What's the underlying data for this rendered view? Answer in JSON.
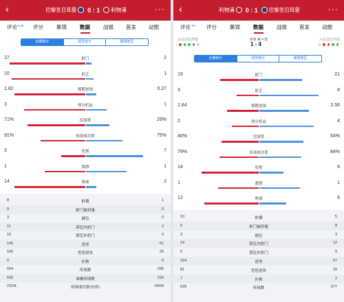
{
  "left": {
    "header": {
      "back_icon": "‹",
      "home_team": "巴黎圣日耳曼",
      "score": "0 : 1",
      "away_team": "利物浦",
      "more_icon": "···"
    },
    "tabs": [
      {
        "label": "评论",
        "sup": "6.2k"
      },
      {
        "label": "评分",
        "sup": ""
      },
      {
        "label": "集锦",
        "sup": ""
      },
      {
        "label": "数据",
        "sup": ""
      },
      {
        "label": "战报",
        "sup": ""
      },
      {
        "label": "首发",
        "sup": ""
      },
      {
        "label": "动图",
        "sup": ""
      }
    ],
    "active_tab": 3,
    "segments": [
      "比赛统计",
      "球员统计",
      "踢球热区"
    ],
    "stats": [
      {
        "name": "射门",
        "left": "27",
        "right": "2",
        "lf": 0.93,
        "rf": 0.07
      },
      {
        "name": "射正",
        "left": "10",
        "right": "1",
        "lf": 0.91,
        "rf": 0.09
      },
      {
        "name": "预期进球",
        "left": "1.82",
        "right": "0.27",
        "lf": 0.87,
        "rf": 0.13
      },
      {
        "name": "得分机会",
        "left": "3",
        "right": "1",
        "lf": 0.75,
        "rf": 0.25
      },
      {
        "name": "控球率",
        "left": "71%",
        "right": "29%",
        "lf": 0.71,
        "rf": 0.29
      },
      {
        "name": "传球成功率",
        "left": "91%",
        "right": "75%",
        "lf": 0.55,
        "rf": 0.45
      },
      {
        "name": "犯规",
        "left": "3",
        "right": "7",
        "lf": 0.3,
        "rf": 0.7
      },
      {
        "name": "黄牌",
        "left": "1",
        "right": "1",
        "lf": 0.5,
        "rf": 0.5
      },
      {
        "name": "角球",
        "left": "14",
        "right": "2",
        "lf": 0.875,
        "rf": 0.125
      }
    ],
    "list": [
      {
        "name": "射偏",
        "left": "8",
        "right": "1"
      },
      {
        "name": "射门被封堵",
        "left": "9",
        "right": "0"
      },
      {
        "name": "越位",
        "left": "3",
        "right": "0"
      },
      {
        "name": "禁区内射门",
        "left": "11",
        "right": "2"
      },
      {
        "name": "禁区外射门",
        "left": "16",
        "right": "0"
      },
      {
        "name": "进攻",
        "left": "145",
        "right": "61"
      },
      {
        "name": "危险进攻",
        "left": "106",
        "right": "25"
      },
      {
        "name": "扑救",
        "left": "0",
        "right": "9"
      },
      {
        "name": "传球数",
        "left": "694",
        "right": "295"
      },
      {
        "name": "准确传球数",
        "left": "630",
        "right": "220"
      },
      {
        "name": "传球成功率(长传)",
        "left": "23/34",
        "right": "24/58"
      }
    ]
  },
  "right": {
    "header": {
      "back_icon": "‹",
      "home_team": "利物浦",
      "score": "0 : 1",
      "away_team": "巴黎圣日耳曼",
      "more_icon": "···"
    },
    "tabs": [
      {
        "label": "评论",
        "sup": "7w"
      },
      {
        "label": "评分",
        "sup": ""
      },
      {
        "label": "集锦",
        "sup": ""
      },
      {
        "label": "数据",
        "sup": ""
      },
      {
        "label": "战报",
        "sup": ""
      },
      {
        "label": "首发",
        "sup": ""
      },
      {
        "label": "动图",
        "sup": ""
      }
    ],
    "active_tab": 3,
    "shootout": {
      "left_fav": "从左往右开始",
      "right_fav": "从右往左开始",
      "label": "点球 第 4 轮",
      "score": "1 - 4",
      "left_colors": [
        "#e23a3a",
        "#2fbf55",
        "#2fbf55",
        "#2fbf55",
        "#cfd3da"
      ],
      "right_colors": [
        "#cfd3da",
        "#e23a3a",
        "#e23a3a",
        "#2fbf55",
        "#2fbf55"
      ]
    },
    "segments": [
      "比赛统计",
      "球员统计",
      "踢球热区"
    ],
    "stats": [
      {
        "name": "射门",
        "left": "19",
        "right": "21",
        "lf": 0.475,
        "rf": 0.525
      },
      {
        "name": "射正",
        "left": "3",
        "right": "8",
        "lf": 0.27,
        "rf": 0.73
      },
      {
        "name": "预期进球",
        "left": "1.64",
        "right": "2.56",
        "lf": 0.39,
        "rf": 0.61
      },
      {
        "name": "得分机会",
        "left": "2",
        "right": "4",
        "lf": 0.33,
        "rf": 0.67
      },
      {
        "name": "控球率",
        "left": "46%",
        "right": "54%",
        "lf": 0.46,
        "rf": 0.54
      },
      {
        "name": "传球成功率",
        "left": "79%",
        "right": "84%",
        "lf": 0.48,
        "rf": 0.52
      },
      {
        "name": "犯规",
        "left": "14",
        "right": "6",
        "lf": 0.7,
        "rf": 0.3
      },
      {
        "name": "黄牌",
        "left": "1",
        "right": "1",
        "lf": 0.5,
        "rf": 0.5
      },
      {
        "name": "角球",
        "left": "12",
        "right": "6",
        "lf": 0.67,
        "rf": 0.33
      }
    ],
    "list": [
      {
        "name": "射偏",
        "left": "10",
        "right": "5"
      },
      {
        "name": "射门被封堵",
        "left": "6",
        "right": "8"
      },
      {
        "name": "越位",
        "left": "3",
        "right": "3"
      },
      {
        "name": "禁区内射门",
        "left": "14",
        "right": "12"
      },
      {
        "name": "禁区外射门",
        "left": "5",
        "right": "9"
      },
      {
        "name": "进攻",
        "left": "154",
        "right": "67"
      },
      {
        "name": "危险进攻",
        "left": "81",
        "right": "29"
      },
      {
        "name": "扑救",
        "left": "7",
        "right": "2"
      },
      {
        "name": "传球数",
        "left": "539",
        "right": "677"
      }
    ]
  }
}
